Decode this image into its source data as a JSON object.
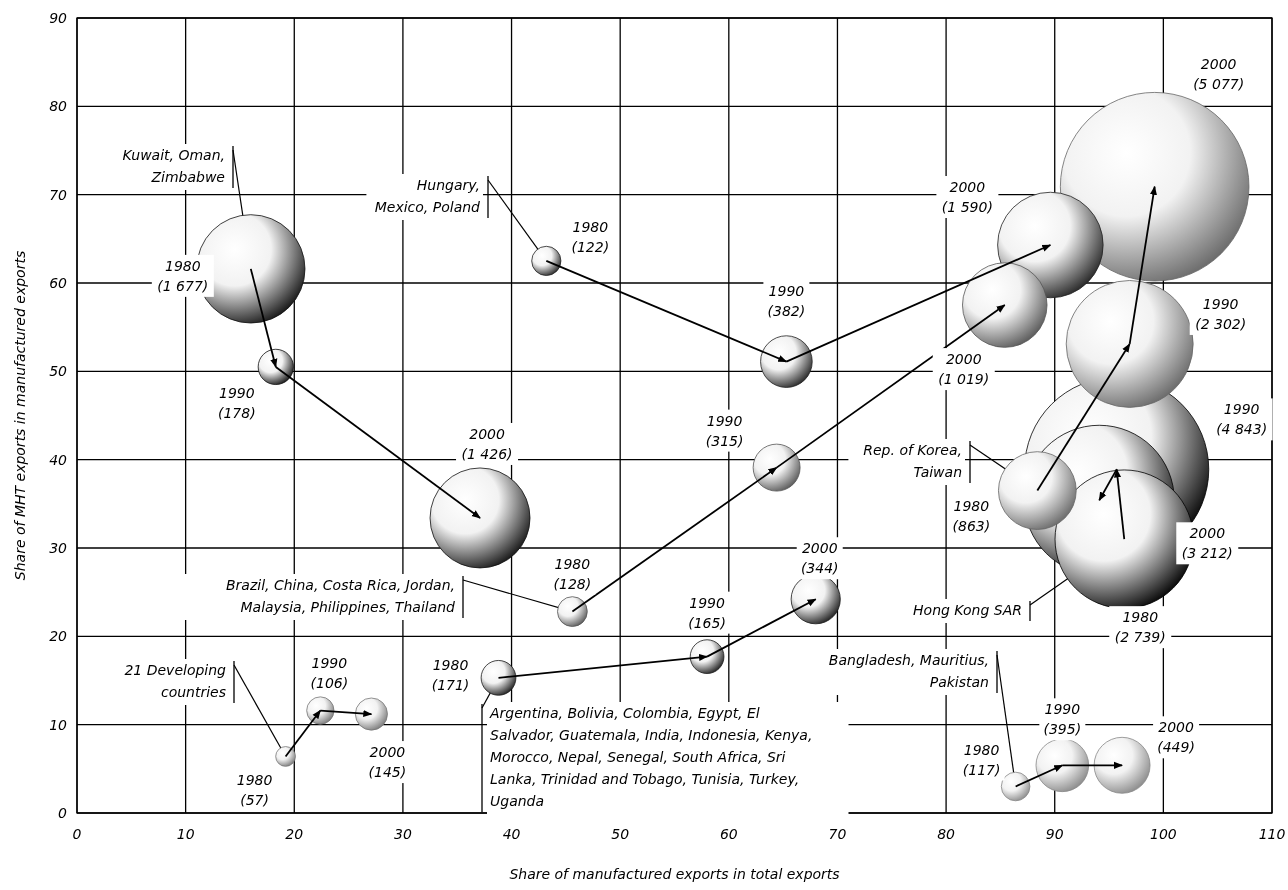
{
  "chart_data": {
    "type": "bubble",
    "xlabel": "Share of manufactured exports in total exports",
    "ylabel": "Share of MHT exports in manufactured exports",
    "xlim": [
      0,
      110
    ],
    "xticks": [
      0,
      10,
      20,
      30,
      40,
      50,
      60,
      70,
      80,
      90,
      100,
      110
    ],
    "ylim": [
      0,
      90
    ],
    "yticks": [
      0,
      10,
      20,
      30,
      40,
      50,
      60,
      70,
      80,
      90
    ],
    "grid": true,
    "series": [
      {
        "name": "Kuwait, Oman, Zimbabwe",
        "color": "#111111",
        "x": [
          16,
          18.3,
          37.1
        ],
        "values": [
          61.6,
          50.5,
          33.4
        ],
        "sizes": [
          0.33,
          0.035,
          0.281
        ],
        "value_labels": [
          "1980 (1 677)",
          "1990 (178)",
          "2000 (1 426)"
        ]
      },
      {
        "name": "Hungary, Mexico, Poland",
        "color": "#222222",
        "x": [
          43.2,
          65.3,
          89.6
        ],
        "values": [
          62.5,
          51.1,
          64.3
        ],
        "sizes": [
          0.024,
          0.075,
          0.313
        ],
        "value_labels": [
          "1980 (122)",
          "1990 (382)",
          "2000 (1 590)"
        ]
      },
      {
        "name": "Brazil, China, Costa Rica, Jordan, Malaysia, Philippines, Thailand",
        "color": "#555555",
        "x": [
          45.6,
          64.4,
          85.4
        ],
        "values": [
          22.8,
          39.1,
          57.5
        ],
        "sizes": [
          0.025,
          0.062,
          0.201
        ],
        "value_labels": [
          "1980 (128)",
          "1990 (315)",
          "2000 (1 019)"
        ]
      },
      {
        "name": "Argentina, Bolivia, Colombia, Egypt, El Salvador, Guatemala, India, Indonesia, Kenya, Morocco, Nepal, Senegal, South Africa, Sri Lanka, Trinidad and Tobago, Tunisia, Turkey, Uganda",
        "color": "#1a1a1a",
        "x": [
          38.8,
          58,
          68
        ],
        "values": [
          15.3,
          17.7,
          24.2
        ],
        "sizes": [
          0.034,
          0.032,
          0.068
        ],
        "value_labels": [
          "1980 (171)",
          "1990 (165)",
          "2000 (344)"
        ]
      },
      {
        "name": "21 Developing countries",
        "color": "#777777",
        "x": [
          19.2,
          22.4,
          27.1
        ],
        "values": [
          6.4,
          11.6,
          11.2
        ],
        "sizes": [
          0.011,
          0.021,
          0.029
        ],
        "value_labels": [
          "1980 (57)",
          "1990 (106)",
          "2000 (145)"
        ]
      },
      {
        "name": "Bangladesh, Mauritius, Pakistan",
        "color": "#888888",
        "x": [
          86.4,
          90.7,
          96.2
        ],
        "values": [
          3,
          5.4,
          5.4
        ],
        "sizes": [
          0.023,
          0.078,
          0.088
        ],
        "value_labels": [
          "1980 (117)",
          "1990 (395)",
          "2000 (449)"
        ]
      },
      {
        "name": "Rep. of Korea, Taiwan",
        "color": "#666666",
        "x": [
          88.4,
          96.9,
          99.2
        ],
        "values": [
          36.5,
          53.1,
          70.9
        ],
        "sizes": [
          0.17,
          0.453,
          1
        ],
        "value_labels": [
          "1980 (863)",
          "1990 (2 302)",
          "2000 (5 077)"
        ]
      },
      {
        "name": "Hong Kong SAR",
        "color": "#000000",
        "x": [
          96.4,
          95.7,
          94.1
        ],
        "values": [
          31,
          38.9,
          35.4
        ],
        "sizes": [
          0.539,
          0.954,
          0.633
        ],
        "value_labels": [
          "1980 (2 739)",
          "1990 (4 843)",
          "2000 (3 212)"
        ]
      }
    ]
  }
}
